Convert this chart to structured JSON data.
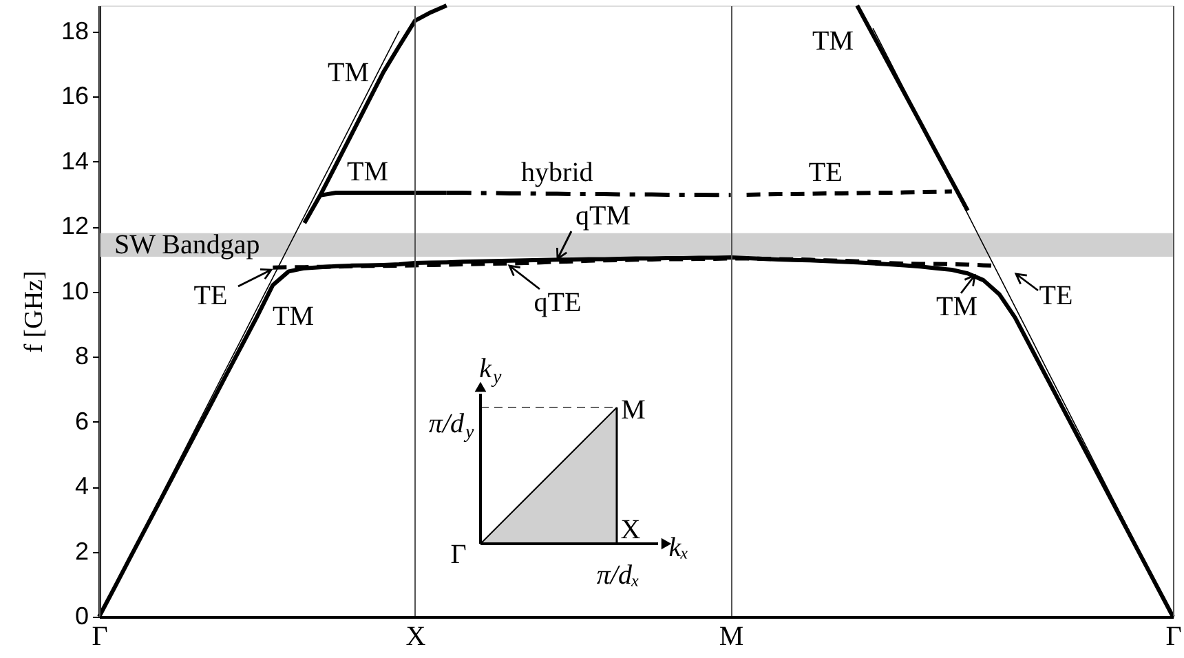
{
  "chart_data": {
    "type": "line",
    "ylabel": "f [GHz]",
    "categories": [
      "Γ",
      null,
      null,
      null,
      null,
      null,
      null,
      null,
      null,
      null,
      null,
      null,
      null,
      null,
      null,
      null,
      null,
      null,
      null,
      null,
      "X",
      null,
      null,
      null,
      null,
      null,
      null,
      null,
      null,
      null,
      null,
      null,
      null,
      null,
      null,
      null,
      null,
      null,
      null,
      null,
      "M",
      null,
      null,
      null,
      null,
      null,
      null,
      null,
      null,
      null,
      null,
      null,
      null,
      null,
      null,
      null,
      null,
      null,
      null,
      null,
      null,
      null,
      null,
      null,
      null,
      null,
      null,
      null,
      "Γ"
    ],
    "ylim": [
      0,
      18.8
    ],
    "yticks": [
      0,
      2,
      4,
      6,
      8,
      10,
      12,
      14,
      16,
      18
    ],
    "grid": "x",
    "bands": [
      {
        "axis": "y",
        "from": 11.07,
        "to": 11.8,
        "label": "SW Bandgap",
        "color": "#d0d0d0"
      }
    ],
    "series": [
      {
        "color": "#000000",
        "values": [
          0,
          0.92,
          1.85,
          2.77,
          3.69,
          4.62,
          5.54,
          6.46,
          7.39,
          8.31,
          9.23,
          10.2,
          10.62,
          10.72,
          10.75,
          10.78,
          10.8,
          10.81,
          10.82,
          10.84,
          10.88,
          10.89,
          10.9,
          10.92,
          10.93,
          10.94,
          10.95,
          10.96,
          10.97,
          10.98,
          10.99,
          11.0,
          11.0,
          11.01,
          11.02,
          11.02,
          11.03,
          11.03,
          11.04,
          11.04,
          11.05,
          11.03,
          11.01,
          10.99,
          10.97,
          10.96,
          10.94,
          10.92,
          10.9,
          10.87,
          10.84,
          10.81,
          10.77,
          10.72,
          10.67,
          10.56,
          10.35,
          9.92,
          9.2,
          8.28,
          7.36,
          6.44,
          5.52,
          4.6,
          3.68,
          2.76,
          1.84,
          0.92,
          0
        ]
      },
      {
        "color": "#000000",
        "values": [
          null,
          null,
          null,
          null,
          null,
          null,
          null,
          null,
          null,
          null,
          null,
          null,
          null,
          12.11,
          12.96,
          13.9,
          14.85,
          15.8,
          16.75,
          17.55,
          18.33,
          18.59,
          18.8,
          null,
          null,
          null,
          null,
          null,
          null,
          null,
          null,
          null,
          null,
          null,
          null,
          null,
          null,
          null,
          null,
          null,
          null,
          null,
          null,
          null,
          null,
          null,
          null,
          null,
          null,
          null,
          null,
          null,
          null,
          null,
          null,
          null,
          null,
          null,
          null,
          null,
          null,
          null,
          null,
          null,
          null,
          null,
          null,
          null,
          null
        ]
      },
      {
        "name": "TM",
        "color": "#000000",
        "values": [
          null,
          null,
          null,
          null,
          null,
          null,
          null,
          null,
          null,
          null,
          null,
          null,
          null,
          null,
          12.96,
          13.04,
          13.04,
          13.04,
          13.04,
          13.04,
          13.04,
          13.04,
          13.04,
          null,
          null,
          null,
          null,
          null,
          null,
          null,
          null,
          null,
          null,
          null,
          null,
          null,
          null,
          null,
          null,
          null,
          null,
          null,
          null,
          null,
          null,
          null,
          null,
          null,
          null,
          null,
          null,
          null,
          null,
          null,
          null,
          null,
          null,
          null,
          null,
          null,
          null,
          null,
          null,
          null,
          null,
          null,
          null,
          null,
          null
        ]
      },
      {
        "name": "hybrid",
        "color": "#000000",
        "line_style": "dashdot",
        "values": [
          null,
          null,
          null,
          null,
          null,
          null,
          null,
          null,
          null,
          null,
          null,
          null,
          null,
          null,
          null,
          null,
          null,
          null,
          null,
          null,
          null,
          null,
          13.04,
          13.04,
          13.03,
          13.03,
          13.02,
          13.02,
          13.01,
          13.01,
          13.0,
          13.0,
          13.0,
          12.99,
          12.99,
          12.99,
          12.98,
          12.98,
          12.98,
          12.97,
          12.97,
          null,
          null,
          null,
          null,
          null,
          null,
          null,
          null,
          null,
          null,
          null,
          null,
          null,
          null,
          null,
          null,
          null,
          null,
          null,
          null,
          null,
          null,
          null,
          null,
          null,
          null,
          null,
          null
        ]
      },
      {
        "name": "TE",
        "color": "#000000",
        "line_style": "dashed",
        "values": [
          null,
          null,
          null,
          null,
          null,
          null,
          null,
          null,
          null,
          null,
          null,
          null,
          null,
          null,
          null,
          null,
          null,
          null,
          null,
          null,
          null,
          null,
          null,
          null,
          null,
          null,
          null,
          null,
          null,
          null,
          null,
          null,
          null,
          null,
          null,
          null,
          null,
          null,
          null,
          null,
          null,
          12.98,
          12.99,
          13.0,
          13.0,
          13.01,
          13.02,
          13.02,
          13.03,
          13.04,
          13.04,
          13.05,
          13.06,
          13.07,
          13.08,
          null,
          null,
          null,
          null,
          null,
          null,
          null,
          null,
          null,
          null,
          null,
          null,
          null,
          null
        ]
      },
      {
        "color": "#000000",
        "values": [
          null,
          null,
          null,
          null,
          null,
          null,
          null,
          null,
          null,
          null,
          null,
          null,
          null,
          null,
          null,
          null,
          null,
          null,
          null,
          null,
          null,
          null,
          null,
          null,
          null,
          null,
          null,
          null,
          null,
          null,
          null,
          null,
          null,
          null,
          null,
          null,
          null,
          null,
          null,
          null,
          null,
          null,
          null,
          null,
          null,
          null,
          null,
          null,
          18.8,
          17.9,
          17.0,
          16.1,
          15.2,
          14.29,
          13.39,
          12.49,
          null,
          null,
          null,
          null,
          null,
          null,
          null,
          null,
          null,
          null,
          null,
          null,
          null
        ]
      },
      {
        "color": "#000000",
        "line_style": "dashed",
        "values": [
          null,
          null,
          null,
          null,
          null,
          null,
          null,
          null,
          null,
          null,
          null,
          10.74,
          10.75,
          10.75,
          10.76,
          10.77,
          10.78,
          10.79,
          10.79,
          10.8,
          10.81,
          10.82,
          10.83,
          10.84,
          10.85,
          10.86,
          10.87,
          10.88,
          10.9,
          10.92,
          10.93,
          10.95,
          10.96,
          10.97,
          10.98,
          10.99,
          11.0,
          11.0,
          11.01,
          11.01,
          11.02,
          11.02,
          11.01,
          11.0,
          10.99,
          10.98,
          10.96,
          10.95,
          10.93,
          10.91,
          10.88,
          10.86,
          10.85,
          10.85,
          10.84,
          10.83,
          10.81,
          10.79,
          null,
          null,
          null,
          null,
          null,
          null,
          null,
          null,
          null,
          null,
          null
        ]
      },
      {
        "color": "#000000",
        "values": [
          0,
          0.95,
          1.9,
          2.84,
          3.79,
          4.74,
          5.69,
          6.64,
          7.59,
          8.53,
          9.48,
          10.43,
          11.38,
          12.33,
          13.28,
          14.22,
          15.17,
          16.12,
          17.07,
          18.02,
          null,
          null,
          null,
          null,
          null,
          null,
          null,
          null,
          null,
          null,
          null,
          null,
          null,
          null,
          null,
          null,
          null,
          null,
          null,
          null,
          null,
          null,
          null,
          null,
          null,
          null,
          null,
          null,
          null,
          18.1,
          17.15,
          16.2,
          15.25,
          14.29,
          13.34,
          12.39,
          11.43,
          10.48,
          9.53,
          8.58,
          7.62,
          6.67,
          5.72,
          4.76,
          3.81,
          2.86,
          1.91,
          0.95,
          0
        ]
      }
    ],
    "annotations": [
      "TM",
      "qTM",
      "qTE",
      "TE",
      "TM",
      "TM",
      "TE",
      "TM",
      "k$_{y}$",
      "π/d$_{y}$",
      "M",
      "Γ",
      "X",
      "kₓ",
      "π/dₓ"
    ]
  }
}
